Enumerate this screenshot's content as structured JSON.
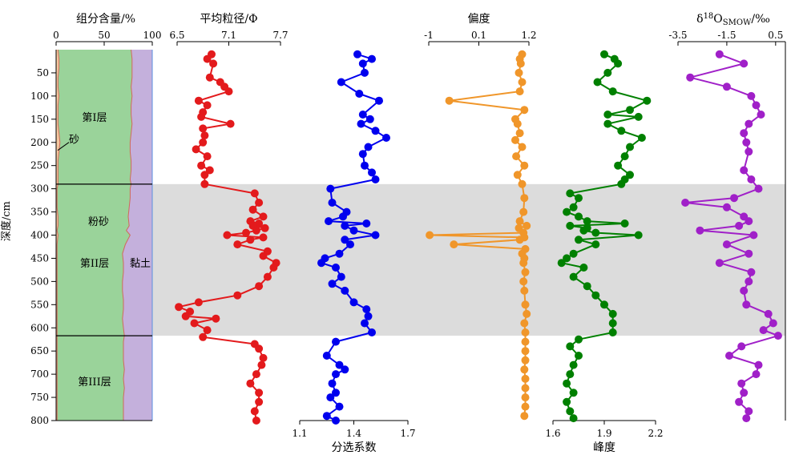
{
  "chart_data": {
    "type": "scatter",
    "depth_axis": {
      "label": "深度/cm",
      "ticks": [
        "50",
        "100",
        "150",
        "200",
        "250",
        "300",
        "350",
        "400",
        "450",
        "500",
        "550",
        "600",
        "650",
        "700",
        "750",
        "800"
      ],
      "ylim": [
        0,
        800
      ],
      "direction": "downward"
    },
    "highlight_band": {
      "depth_range": [
        290,
        617
      ],
      "color": "#dcdcdc"
    },
    "panels": [
      {
        "id": "grain",
        "type": "area",
        "title": "组分含量/%",
        "xlim": [
          0,
          100
        ],
        "ticks": [
          "0",
          "50",
          "100"
        ],
        "depth": [
          0,
          20,
          40,
          60,
          80,
          100,
          120,
          140,
          160,
          180,
          200,
          220,
          240,
          260,
          280,
          290,
          300,
          320,
          340,
          360,
          380,
          390,
          400,
          420,
          440,
          460,
          480,
          500,
          520,
          540,
          560,
          580,
          600,
          617,
          630,
          650,
          670,
          690,
          710,
          730,
          750,
          770,
          790,
          800
        ],
        "sand": [
          2,
          3,
          3,
          2,
          2,
          3,
          2,
          2,
          2,
          3,
          4,
          3,
          2,
          2,
          2,
          2,
          1,
          1,
          1,
          2,
          2,
          1,
          2,
          1,
          1,
          1,
          1,
          1,
          1,
          1,
          1,
          1,
          1,
          1,
          1,
          1,
          1,
          1,
          1,
          1,
          1,
          1,
          1,
          1
        ],
        "silt_cum": [
          78,
          79,
          79,
          79,
          78,
          79,
          78,
          78,
          79,
          78,
          77,
          77,
          78,
          78,
          77,
          78,
          77,
          77,
          76,
          75,
          76,
          73,
          77,
          72,
          69,
          70,
          70,
          69,
          69,
          70,
          70,
          69,
          70,
          71,
          70,
          70,
          70,
          71,
          70,
          71,
          70,
          70,
          70,
          70
        ],
        "colors": {
          "sand": "#f4c8a0",
          "silt": "#9ad39a",
          "clay": "#c4b0dc"
        },
        "layers": [
          {
            "label": "第I层",
            "depth": 145
          },
          {
            "label": "第II层",
            "depth": 460
          },
          {
            "label": "第III层",
            "depth": 715
          }
        ],
        "components": [
          {
            "label": "砂",
            "depth": 193
          },
          {
            "label": "粉砂",
            "depth": 370
          },
          {
            "label": "黏土",
            "depth": 460
          }
        ],
        "boundaries": [
          290,
          617
        ]
      },
      {
        "id": "mean",
        "title": "平均粒径/Φ",
        "axis_position": "top",
        "xlim": [
          6.5,
          7.7
        ],
        "ticks": [
          "6.5",
          "7.1",
          "7.7"
        ],
        "color": "#e31a1c",
        "depth": [
          10,
          20,
          30,
          60,
          70,
          80,
          90,
          110,
          120,
          135,
          145,
          160,
          170,
          185,
          200,
          215,
          230,
          250,
          260,
          270,
          290,
          310,
          330,
          345,
          360,
          370,
          375,
          380,
          385,
          390,
          395,
          400,
          405,
          410,
          420,
          435,
          445,
          460,
          470,
          490,
          510,
          530,
          545,
          555,
          565,
          575,
          580,
          590,
          605,
          620,
          635,
          645,
          665,
          680,
          700,
          720,
          740,
          760,
          780,
          800
        ],
        "values": [
          6.9,
          6.85,
          6.92,
          6.88,
          7.0,
          7.05,
          7.1,
          6.75,
          6.85,
          6.8,
          6.78,
          7.12,
          6.8,
          6.82,
          6.8,
          6.72,
          6.85,
          6.78,
          6.88,
          6.82,
          6.82,
          7.4,
          7.45,
          7.38,
          7.5,
          7.35,
          7.45,
          7.38,
          7.52,
          7.42,
          7.3,
          7.08,
          7.5,
          7.35,
          7.2,
          7.55,
          7.5,
          7.65,
          7.62,
          7.55,
          7.45,
          7.2,
          6.75,
          6.52,
          6.65,
          6.6,
          6.95,
          6.7,
          6.85,
          6.8,
          7.4,
          7.45,
          7.5,
          7.48,
          7.42,
          7.35,
          7.45,
          7.45,
          7.4,
          7.42
        ]
      },
      {
        "id": "sorting",
        "title": "分选系数",
        "axis_position": "bottom",
        "xlim": [
          1.1,
          1.7
        ],
        "ticks": [
          "1.1",
          "1.4",
          "1.7"
        ],
        "color": "#0000ee",
        "depth": [
          10,
          20,
          30,
          50,
          70,
          95,
          110,
          140,
          150,
          160,
          175,
          190,
          210,
          225,
          250,
          265,
          280,
          300,
          330,
          350,
          360,
          370,
          375,
          380,
          390,
          400,
          410,
          420,
          440,
          450,
          460,
          470,
          490,
          505,
          520,
          545,
          560,
          575,
          590,
          610,
          630,
          660,
          680,
          690,
          700,
          720,
          740,
          750,
          770,
          790,
          800
        ],
        "values": [
          1.42,
          1.5,
          1.45,
          1.46,
          1.33,
          1.43,
          1.54,
          1.45,
          1.49,
          1.44,
          1.52,
          1.58,
          1.48,
          1.45,
          1.46,
          1.5,
          1.52,
          1.27,
          1.28,
          1.36,
          1.34,
          1.26,
          1.47,
          1.35,
          1.4,
          1.52,
          1.35,
          1.38,
          1.32,
          1.24,
          1.22,
          1.3,
          1.33,
          1.28,
          1.35,
          1.4,
          1.47,
          1.48,
          1.46,
          1.5,
          1.3,
          1.25,
          1.32,
          1.35,
          1.3,
          1.28,
          1.3,
          1.27,
          1.32,
          1.25,
          1.3
        ]
      },
      {
        "id": "skewness",
        "title": "偏度",
        "axis_position": "top",
        "xlim": [
          -1,
          1.2
        ],
        "ticks": [
          "-1",
          "0.1",
          "1.2"
        ],
        "color": "#f0962a",
        "depth": [
          10,
          20,
          30,
          50,
          70,
          90,
          110,
          130,
          150,
          160,
          180,
          195,
          210,
          230,
          250,
          270,
          290,
          320,
          350,
          370,
          380,
          385,
          395,
          400,
          405,
          410,
          420,
          430,
          440,
          450,
          460,
          480,
          500,
          520,
          550,
          570,
          590,
          610,
          630,
          650,
          670,
          690,
          710,
          730,
          750,
          770,
          790
        ],
        "values": [
          1.05,
          1.0,
          1.02,
          0.98,
          1.05,
          1.0,
          -0.55,
          1.1,
          0.9,
          0.95,
          1.0,
          0.9,
          1.05,
          0.92,
          1.1,
          0.95,
          1.05,
          1.1,
          1.08,
          1.0,
          1.15,
          0.98,
          1.08,
          -0.98,
          1.1,
          1.0,
          -0.45,
          1.12,
          1.05,
          1.1,
          1.08,
          1.12,
          1.08,
          1.1,
          1.12,
          1.15,
          1.1,
          1.12,
          1.12,
          1.12,
          1.12,
          1.1,
          1.12,
          1.12,
          1.12,
          1.12,
          1.1
        ]
      },
      {
        "id": "kurtosis",
        "title": "峰度",
        "axis_position": "bottom",
        "xlim": [
          1.6,
          2.2
        ],
        "ticks": [
          "1.6",
          "1.9",
          "2.2"
        ],
        "color": "#008000",
        "depth": [
          10,
          20,
          30,
          50,
          70,
          90,
          110,
          130,
          140,
          145,
          160,
          175,
          190,
          210,
          230,
          250,
          270,
          280,
          290,
          310,
          320,
          340,
          350,
          360,
          370,
          375,
          380,
          385,
          390,
          395,
          400,
          410,
          420,
          440,
          450,
          460,
          470,
          490,
          510,
          530,
          550,
          570,
          590,
          610,
          625,
          640,
          660,
          680,
          700,
          720,
          740,
          760,
          780,
          795
        ],
        "values": [
          1.9,
          1.96,
          1.98,
          1.92,
          1.86,
          1.95,
          2.15,
          2.05,
          1.92,
          2.1,
          1.92,
          2.0,
          2.12,
          2.05,
          2.02,
          1.98,
          2.05,
          2.02,
          2.0,
          1.7,
          1.75,
          1.72,
          1.68,
          1.75,
          1.8,
          2.02,
          1.7,
          1.8,
          1.78,
          1.85,
          2.1,
          1.75,
          1.85,
          1.72,
          1.68,
          1.65,
          1.78,
          1.72,
          1.8,
          1.85,
          1.9,
          1.95,
          1.95,
          1.95,
          1.75,
          1.7,
          1.75,
          1.72,
          1.7,
          1.68,
          1.72,
          1.68,
          1.7,
          1.72
        ]
      },
      {
        "id": "d18o",
        "title": "δ18OSMOW/‰",
        "axis_position": "top",
        "xlim": [
          -3.5,
          0.9
        ],
        "ticks": [
          "-3.5",
          "-1.5",
          "0.5"
        ],
        "color": "#a020c8",
        "depth": [
          10,
          30,
          60,
          80,
          100,
          120,
          140,
          160,
          180,
          200,
          220,
          260,
          280,
          300,
          320,
          330,
          340,
          360,
          370,
          380,
          390,
          400,
          420,
          440,
          460,
          480,
          500,
          520,
          550,
          570,
          590,
          605,
          617,
          640,
          660,
          680,
          700,
          720,
          740,
          760,
          780,
          795
        ],
        "values": [
          -1.8,
          -0.8,
          -3.0,
          -1.5,
          -0.5,
          -0.3,
          -0.1,
          -0.6,
          -0.8,
          -0.7,
          -0.6,
          -0.8,
          -0.5,
          -0.2,
          -1.2,
          -3.2,
          -1.5,
          -0.8,
          -0.6,
          -1.0,
          -2.6,
          -0.4,
          -1.5,
          -0.6,
          -1.8,
          -0.5,
          -0.6,
          -0.8,
          -0.7,
          0.2,
          0.4,
          0.0,
          0.6,
          -0.9,
          -1.4,
          -0.2,
          -0.3,
          -0.9,
          -0.8,
          -1.0,
          -0.6,
          -0.7
        ]
      }
    ]
  }
}
